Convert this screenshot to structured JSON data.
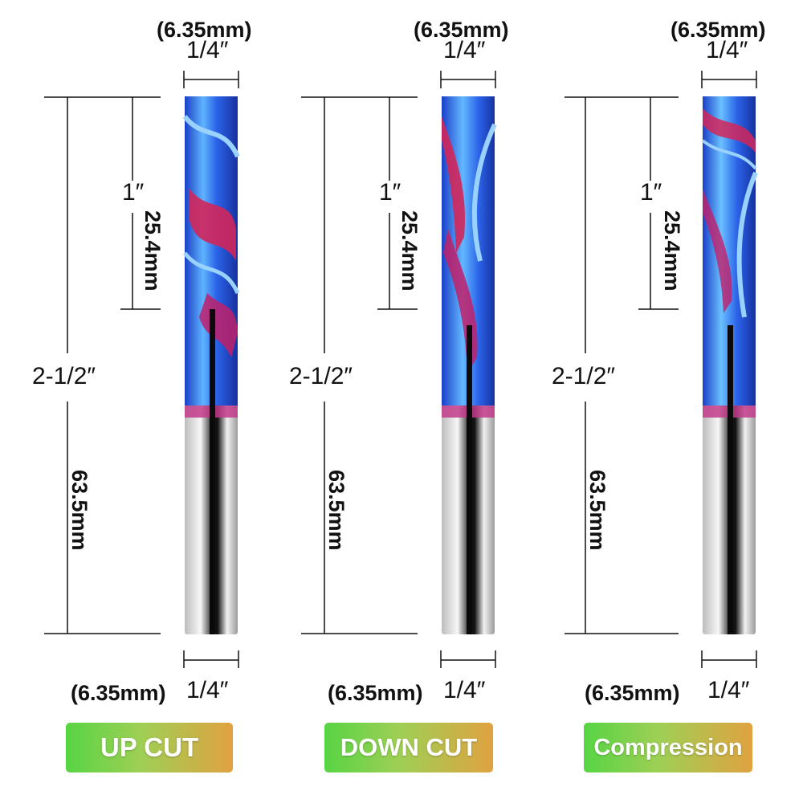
{
  "colors": {
    "label_start": "#57d444",
    "label_end": "#e0a240",
    "coating_blue": "#2f6ff0",
    "coating_red": "#d2265a",
    "shank_silver": "#e9e9e9"
  },
  "bits": [
    {
      "diameter_mm_top": "(6.35mm)",
      "diameter_in_top": "1/4″",
      "cut_length_in": "1″",
      "cut_length_mm": "25.4mm",
      "overall_length_in": "2-1/2″",
      "overall_length_mm": "63.5mm",
      "diameter_mm_bottom": "(6.35mm)",
      "diameter_in_bottom": "1/4″",
      "type_label": "UP CUT"
    },
    {
      "diameter_mm_top": "(6.35mm)",
      "diameter_in_top": "1/4″",
      "cut_length_in": "1″",
      "cut_length_mm": "25.4mm",
      "overall_length_in": "2-1/2″",
      "overall_length_mm": "63.5mm",
      "diameter_mm_bottom": "(6.35mm)",
      "diameter_in_bottom": "1/4″",
      "type_label": "DOWN CUT"
    },
    {
      "diameter_mm_top": "(6.35mm)",
      "diameter_in_top": "1/4″",
      "cut_length_in": "1″",
      "cut_length_mm": "25.4mm",
      "overall_length_in": "2-1/2″",
      "overall_length_mm": "63.5mm",
      "diameter_mm_bottom": "(6.35mm)",
      "diameter_in_bottom": "1/4″",
      "type_label": "Compression"
    }
  ]
}
